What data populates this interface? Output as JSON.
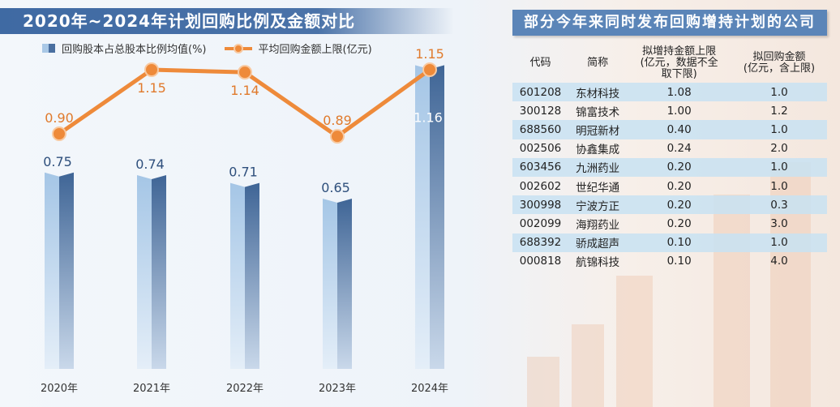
{
  "left_title": "2020年~2024年计划回购比例及金额对比",
  "right_title": "部分今年来同时发布回购增持计划的公司",
  "chart_data": {
    "type": "bar+line",
    "title": "2020年~2024年计划回购比例及金额对比",
    "categories": [
      "2020年",
      "2021年",
      "2022年",
      "2023年",
      "2024年"
    ],
    "series": [
      {
        "name": "回购股本占总股本比例均值(%)",
        "type": "bar",
        "values": [
          0.75,
          0.74,
          0.71,
          0.65,
          1.16
        ],
        "color": "#4a6fa0"
      },
      {
        "name": "平均回购金额上限(亿元)",
        "type": "line",
        "values": [
          0.9,
          1.15,
          1.14,
          0.89,
          1.15
        ],
        "color": "#ee8a3a"
      }
    ],
    "legend": "top"
  },
  "table": {
    "headers": [
      "代码",
      "简称",
      "拟增持金额上限\n(亿元，数据不全\n取下限)",
      "拟回购金额\n(亿元，含上限)"
    ],
    "rows": [
      [
        "601208",
        "东材科技",
        "1.08",
        "1.0"
      ],
      [
        "300128",
        "锦富技术",
        "1.00",
        "1.2"
      ],
      [
        "688560",
        "明冠新材",
        "0.40",
        "1.0"
      ],
      [
        "002506",
        "协鑫集成",
        "0.24",
        "2.0"
      ],
      [
        "603456",
        "九洲药业",
        "0.20",
        "1.0"
      ],
      [
        "002602",
        "世纪华通",
        "0.20",
        "1.0"
      ],
      [
        "300998",
        "宁波方正",
        "0.20",
        "0.3"
      ],
      [
        "002099",
        "海翔药业",
        "0.20",
        "3.0"
      ],
      [
        "688392",
        "骄成超声",
        "0.10",
        "1.0"
      ],
      [
        "000818",
        "航锦科技",
        "0.10",
        "4.0"
      ]
    ]
  }
}
